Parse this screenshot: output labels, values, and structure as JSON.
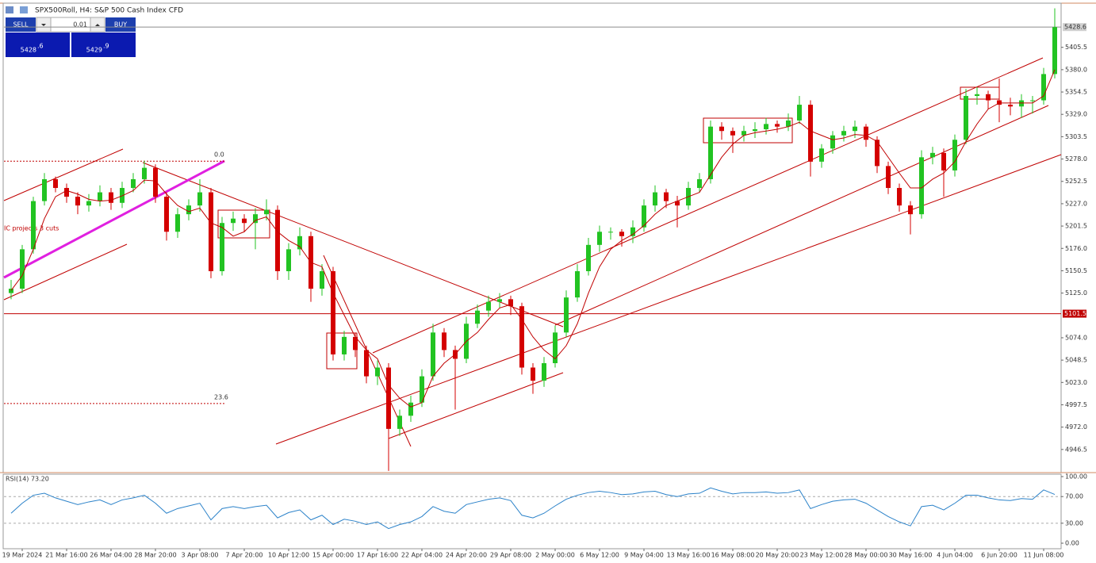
{
  "header": {
    "title": "SPX500Roll, H4:  S&P 500 Cash Index CFD"
  },
  "trade_panel": {
    "sell_label": "SELL",
    "lot": "0.01",
    "buy_label": "BUY",
    "bid_main": "5428",
    "bid_frac": ".6",
    "ask_main": "5429",
    "ask_frac": ".9"
  },
  "chart_data": [
    {
      "type": "candlestick",
      "annotation": "IC projects 3 cuts",
      "categories": [
        null,
        "19 Mar 2024",
        null,
        null,
        null,
        "21 Mar 16:00",
        null,
        null,
        null,
        "26 Mar 04:00",
        null,
        null,
        null,
        "28 Mar 20:00",
        null,
        null,
        null,
        "3 Apr 08:00",
        null,
        null,
        null,
        "7 Apr 20:00",
        null,
        null,
        null,
        "10 Apr 12:00",
        null,
        null,
        null,
        "15 Apr 00:00",
        null,
        null,
        null,
        "17 Apr 16:00",
        null,
        null,
        null,
        "22 Apr 04:00",
        null,
        null,
        null,
        "24 Apr 20:00",
        null,
        null,
        null,
        "29 Apr 08:00",
        null,
        null,
        null,
        "2 May 00:00",
        null,
        null,
        null,
        "6 May 12:00",
        null,
        null,
        null,
        "9 May 04:00",
        null,
        null,
        null,
        "13 May 16:00",
        null,
        null,
        null,
        "16 May 08:00",
        null,
        null,
        null,
        "20 May 20:00",
        null,
        null,
        null,
        "23 May 12:00",
        null,
        null,
        null,
        "28 May 00:00",
        null,
        null,
        null,
        "30 May 16:00",
        null,
        null,
        null,
        "4 Jun 04:00",
        null,
        null,
        null,
        "6 Jun 20:00",
        null,
        null,
        null,
        "11 Jun 08:00",
        null
      ],
      "open": [
        5125,
        5130,
        5175,
        5230,
        5255,
        5245,
        5235,
        5225,
        5230,
        5240,
        5228,
        5245,
        5255,
        5268,
        5235,
        5195,
        5215,
        5225,
        5240,
        5150,
        5205,
        5210,
        5205,
        5215,
        5220,
        5150,
        5175,
        5190,
        5130,
        5150,
        5055,
        5075,
        5060,
        5030,
        5040,
        4970,
        4985,
        5000,
        5030,
        5080,
        5060,
        5050,
        5090,
        5105,
        5115,
        5118,
        5110,
        5040,
        5025,
        5045,
        5080,
        5120,
        5150,
        5180,
        5195,
        5195,
        5190,
        5200,
        5225,
        5240,
        5230,
        5225,
        5245,
        5255,
        5315,
        5310,
        5305,
        5310,
        5312,
        5318,
        5315,
        5322,
        5340,
        5275,
        5290,
        5305,
        5310,
        5315,
        5300,
        5270,
        5245,
        5225,
        5215,
        5280,
        5285,
        5265,
        5300,
        5350,
        5352,
        5345,
        5340,
        5338,
        5345,
        5345,
        5375
      ],
      "high": [
        5140,
        5180,
        5235,
        5262,
        5258,
        5250,
        5240,
        5238,
        5248,
        5245,
        5252,
        5262,
        5276,
        5272,
        5240,
        5222,
        5232,
        5255,
        5245,
        5212,
        5218,
        5215,
        5222,
        5232,
        5225,
        5182,
        5200,
        5195,
        5158,
        5155,
        5082,
        5080,
        5065,
        5048,
        5045,
        4992,
        5008,
        5038,
        5090,
        5085,
        5065,
        5098,
        5112,
        5122,
        5125,
        5122,
        5114,
        5045,
        5052,
        5088,
        5128,
        5158,
        5188,
        5202,
        5200,
        5198,
        5208,
        5232,
        5248,
        5244,
        5236,
        5252,
        5262,
        5322,
        5320,
        5314,
        5316,
        5320,
        5325,
        5322,
        5330,
        5350,
        5345,
        5295,
        5310,
        5316,
        5322,
        5318,
        5304,
        5275,
        5250,
        5230,
        5288,
        5292,
        5290,
        5306,
        5358,
        5360,
        5356,
        5370,
        5348,
        5352,
        5350,
        5382,
        5450
      ],
      "low": [
        5118,
        5125,
        5170,
        5225,
        5240,
        5228,
        5215,
        5218,
        5224,
        5220,
        5222,
        5240,
        5250,
        5228,
        5185,
        5188,
        5208,
        5218,
        5142,
        5145,
        5196,
        5195,
        5175,
        5208,
        5140,
        5140,
        5168,
        5115,
        5122,
        5048,
        5048,
        5052,
        5022,
        5020,
        4922,
        4962,
        4978,
        4995,
        5025,
        5052,
        4992,
        5045,
        5085,
        5098,
        5108,
        5100,
        5032,
        5010,
        5018,
        5040,
        5075,
        5115,
        5145,
        5172,
        5186,
        5178,
        5182,
        5195,
        5218,
        5222,
        5200,
        5220,
        5240,
        5250,
        5300,
        5285,
        5298,
        5302,
        5306,
        5308,
        5310,
        5318,
        5258,
        5268,
        5284,
        5298,
        5302,
        5292,
        5262,
        5238,
        5218,
        5192,
        5210,
        5272,
        5235,
        5258,
        5295,
        5340,
        5335,
        5320,
        5328,
        5325,
        5330,
        5340,
        5370
      ],
      "close": [
        5130,
        5175,
        5230,
        5255,
        5245,
        5235,
        5225,
        5230,
        5240,
        5228,
        5245,
        5255,
        5268,
        5235,
        5195,
        5215,
        5225,
        5240,
        5150,
        5205,
        5210,
        5205,
        5215,
        5220,
        5150,
        5175,
        5190,
        5130,
        5150,
        5055,
        5075,
        5060,
        5030,
        5040,
        4970,
        4985,
        5000,
        5030,
        5080,
        5060,
        5050,
        5090,
        5105,
        5115,
        5118,
        5110,
        5040,
        5025,
        5045,
        5080,
        5120,
        5150,
        5180,
        5195,
        5195,
        5190,
        5200,
        5225,
        5240,
        5230,
        5225,
        5245,
        5255,
        5315,
        5310,
        5305,
        5310,
        5312,
        5318,
        5315,
        5322,
        5340,
        5275,
        5290,
        5305,
        5310,
        5315,
        5300,
        5270,
        5245,
        5225,
        5215,
        5280,
        5285,
        5265,
        5300,
        5350,
        5352,
        5345,
        5340,
        5338,
        5345,
        5345,
        5375,
        5428.6
      ],
      "ma": [
        5128,
        5145,
        5175,
        5210,
        5235,
        5242,
        5238,
        5232,
        5230,
        5231,
        5236,
        5242,
        5254,
        5253,
        5238,
        5225,
        5218,
        5222,
        5205,
        5200,
        5190,
        5195,
        5208,
        5212,
        5195,
        5185,
        5178,
        5160,
        5155,
        5125,
        5100,
        5075,
        5060,
        5050,
        5020,
        5005,
        4995,
        5000,
        5030,
        5045,
        5055,
        5070,
        5080,
        5095,
        5108,
        5112,
        5095,
        5075,
        5060,
        5050,
        5065,
        5090,
        5125,
        5155,
        5175,
        5185,
        5192,
        5202,
        5215,
        5225,
        5230,
        5235,
        5240,
        5260,
        5280,
        5295,
        5305,
        5308,
        5310,
        5312,
        5315,
        5320,
        5310,
        5305,
        5300,
        5302,
        5306,
        5305,
        5298,
        5280,
        5262,
        5245,
        5245,
        5255,
        5262,
        5275,
        5298,
        5318,
        5335,
        5342,
        5342,
        5342,
        5342,
        5350,
        5380
      ],
      "up_color": "#22c322",
      "down_color": "#d40000",
      "ma_color": "#c00000",
      "ylim": [
        4921,
        5455
      ],
      "yticks": [
        5405.5,
        {
          "value": 5380,
          "label": "5380.0"
        },
        5354.5,
        {
          "value": 5329,
          "label": "5329.0"
        },
        5303.5,
        {
          "value": 5278,
          "label": "5278.0"
        },
        5252.5,
        {
          "value": 5227,
          "label": "5227.0"
        },
        5201.5,
        {
          "value": 5176,
          "label": "5176.0"
        },
        5150.5,
        {
          "value": 5125,
          "label": "5125.0"
        },
        {
          "value": 5074,
          "label": "5074.0"
        },
        5048.5,
        {
          "value": 5023,
          "label": "5023.0"
        },
        4997.5,
        {
          "value": 4972,
          "label": "4972.0"
        },
        4946.5
      ],
      "levels": [
        {
          "value": 5101.5,
          "color": "#c00000"
        }
      ],
      "bid_line": {
        "value": 5428.6,
        "color": "#8c8c8c"
      },
      "fib_levels": [
        {
          "label": "0.0",
          "value": 5275.6
        },
        {
          "label": "23.6",
          "value": 4999
        }
      ]
    },
    {
      "type": "line",
      "title": "RSI(14) 73.20",
      "values": [
        45,
        60,
        72,
        75,
        68,
        63,
        58,
        62,
        65,
        58,
        65,
        68,
        72,
        60,
        45,
        52,
        56,
        60,
        35,
        52,
        55,
        52,
        55,
        57,
        38,
        46,
        50,
        35,
        42,
        28,
        36,
        33,
        28,
        32,
        22,
        28,
        32,
        40,
        55,
        48,
        45,
        58,
        62,
        66,
        68,
        64,
        42,
        38,
        45,
        56,
        66,
        72,
        76,
        78,
        76,
        73,
        74,
        77,
        78,
        73,
        70,
        74,
        75,
        83,
        78,
        74,
        76,
        76,
        77,
        75,
        76,
        80,
        52,
        58,
        63,
        65,
        66,
        60,
        50,
        40,
        32,
        26,
        55,
        57,
        50,
        60,
        72,
        72,
        68,
        65,
        64,
        67,
        66,
        80,
        73.2
      ],
      "color": "#2b82c9",
      "ylim": [
        -8.3,
        104.8
      ],
      "yticks": [
        {
          "value": 100,
          "label": "100.00"
        },
        {
          "value": 70,
          "label": "70.00"
        },
        {
          "value": 30,
          "label": "30.00"
        },
        {
          "value": 0,
          "label": "0.00"
        }
      ]
    }
  ]
}
